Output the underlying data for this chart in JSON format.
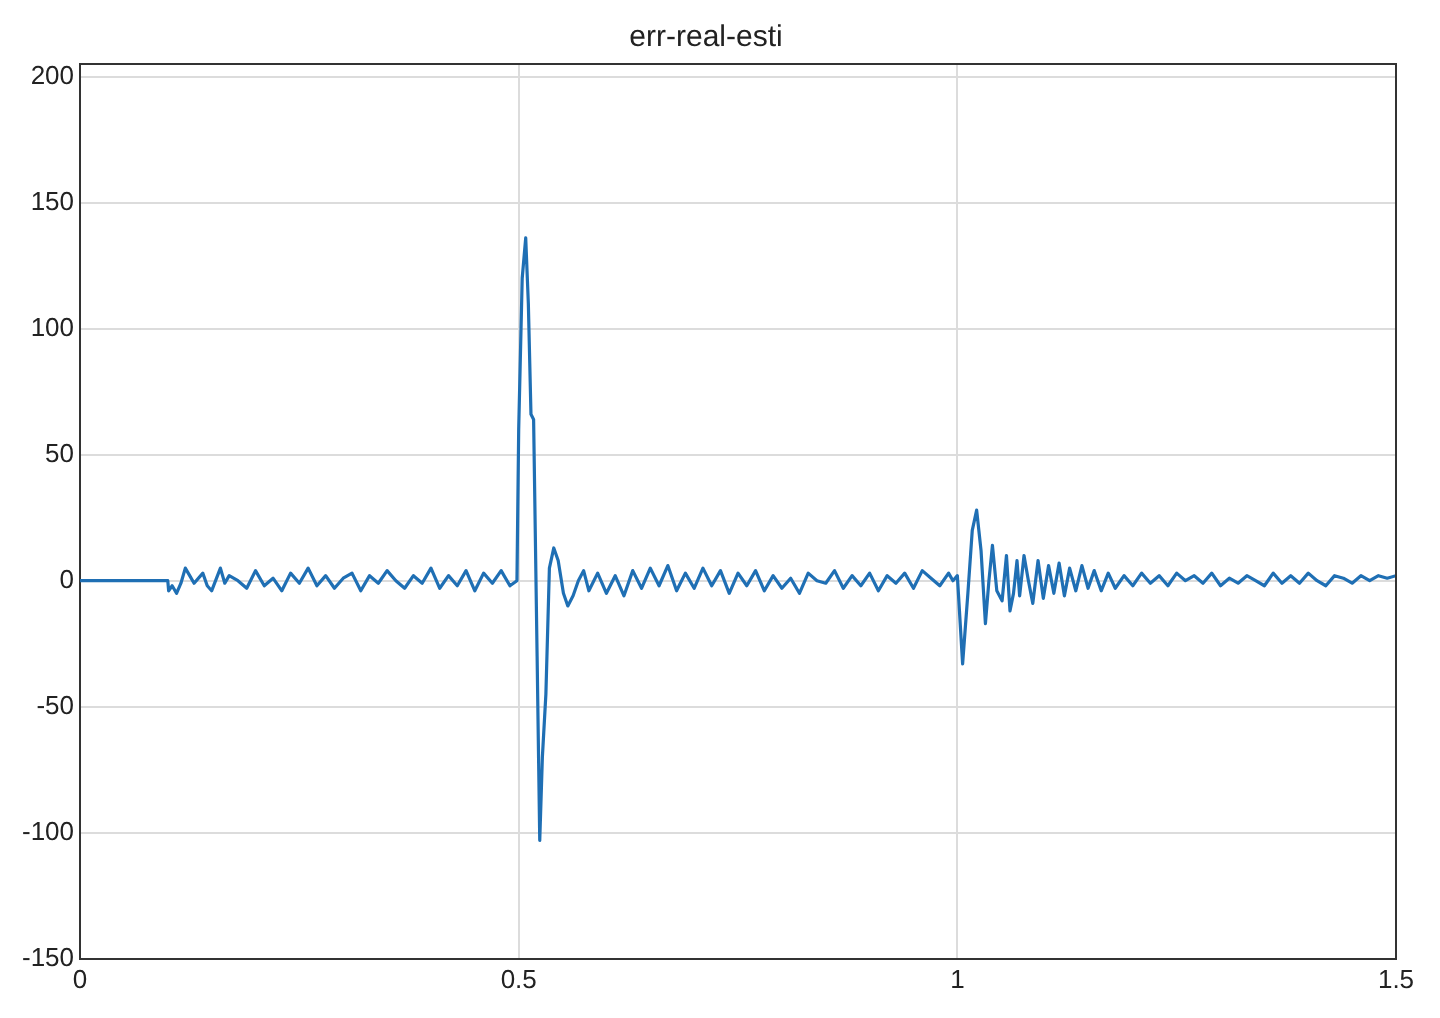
{
  "chart_data": {
    "type": "line",
    "title": "err-real-esti",
    "xlim": [
      0,
      1.5
    ],
    "xticks": [
      0,
      0.5,
      1,
      1.5
    ],
    "ylim": [
      -150,
      205
    ],
    "yticks": [
      -150,
      -100,
      -50,
      0,
      50,
      100,
      150,
      200
    ],
    "grid": true,
    "legend": false,
    "marker": "none",
    "line_style": "solid",
    "series": [
      {
        "color": "#1f6fb4",
        "x": [
          0,
          0.1,
          0.101,
          0.105,
          0.11,
          0.115,
          0.12,
          0.125,
          0.13,
          0.14,
          0.145,
          0.15,
          0.16,
          0.165,
          0.17,
          0.18,
          0.19,
          0.2,
          0.21,
          0.22,
          0.23,
          0.24,
          0.25,
          0.26,
          0.27,
          0.28,
          0.29,
          0.3,
          0.31,
          0.32,
          0.33,
          0.34,
          0.35,
          0.36,
          0.37,
          0.38,
          0.39,
          0.4,
          0.41,
          0.42,
          0.43,
          0.44,
          0.45,
          0.46,
          0.47,
          0.48,
          0.49,
          0.498,
          0.5,
          0.504,
          0.508,
          0.511,
          0.514,
          0.517,
          0.521,
          0.524,
          0.527,
          0.531,
          0.535,
          0.54,
          0.545,
          0.551,
          0.556,
          0.562,
          0.568,
          0.574,
          0.58,
          0.59,
          0.6,
          0.61,
          0.62,
          0.63,
          0.64,
          0.65,
          0.66,
          0.67,
          0.68,
          0.69,
          0.7,
          0.71,
          0.72,
          0.73,
          0.74,
          0.75,
          0.76,
          0.77,
          0.78,
          0.79,
          0.8,
          0.81,
          0.82,
          0.83,
          0.84,
          0.85,
          0.86,
          0.87,
          0.88,
          0.89,
          0.9,
          0.91,
          0.92,
          0.93,
          0.94,
          0.95,
          0.96,
          0.97,
          0.98,
          0.99,
          0.995,
          1.0,
          1.006,
          1.012,
          1.017,
          1.022,
          1.027,
          1.032,
          1.036,
          1.04,
          1.045,
          1.051,
          1.056,
          1.06,
          1.064,
          1.068,
          1.071,
          1.076,
          1.081,
          1.086,
          1.092,
          1.098,
          1.104,
          1.11,
          1.116,
          1.122,
          1.128,
          1.135,
          1.142,
          1.149,
          1.156,
          1.164,
          1.172,
          1.18,
          1.19,
          1.2,
          1.21,
          1.22,
          1.23,
          1.24,
          1.25,
          1.26,
          1.27,
          1.28,
          1.29,
          1.3,
          1.31,
          1.32,
          1.33,
          1.34,
          1.35,
          1.36,
          1.37,
          1.38,
          1.39,
          1.4,
          1.41,
          1.42,
          1.43,
          1.44,
          1.45,
          1.46,
          1.47,
          1.48,
          1.49,
          1.5
        ],
        "values": [
          0,
          0,
          -4,
          -2,
          -5,
          -1,
          5,
          2,
          -1,
          3,
          -2,
          -4,
          5,
          -1,
          2,
          0,
          -3,
          4,
          -2,
          1,
          -4,
          3,
          -1,
          5,
          -2,
          2,
          -3,
          1,
          3,
          -4,
          2,
          -1,
          4,
          0,
          -3,
          2,
          -1,
          5,
          -3,
          2,
          -2,
          4,
          -4,
          3,
          -1,
          4,
          -2,
          0,
          60,
          120,
          136,
          110,
          66,
          64,
          -30,
          -103,
          -70,
          -45,
          5,
          13,
          8,
          -5,
          -10,
          -6,
          0,
          4,
          -4,
          3,
          -5,
          2,
          -6,
          4,
          -3,
          5,
          -2,
          6,
          -4,
          3,
          -3,
          5,
          -2,
          4,
          -5,
          3,
          -2,
          4,
          -4,
          2,
          -3,
          1,
          -5,
          3,
          0,
          -1,
          4,
          -3,
          2,
          -2,
          3,
          -4,
          2,
          -1,
          3,
          -3,
          4,
          1,
          -2,
          3,
          0,
          2,
          -33,
          -5,
          20,
          28,
          12,
          -17,
          0,
          14,
          -4,
          -8,
          10,
          -12,
          -5,
          8,
          -6,
          10,
          0,
          -9,
          8,
          -7,
          6,
          -5,
          7,
          -6,
          5,
          -4,
          6,
          -3,
          4,
          -4,
          3,
          -3,
          2,
          -2,
          3,
          -1,
          2,
          -2,
          3,
          0,
          2,
          -1,
          3,
          -2,
          1,
          -1,
          2,
          0,
          -2,
          3,
          -1,
          2,
          -1,
          3,
          0,
          -2,
          2,
          1,
          -1,
          2,
          0,
          2,
          1,
          2
        ]
      }
    ]
  }
}
